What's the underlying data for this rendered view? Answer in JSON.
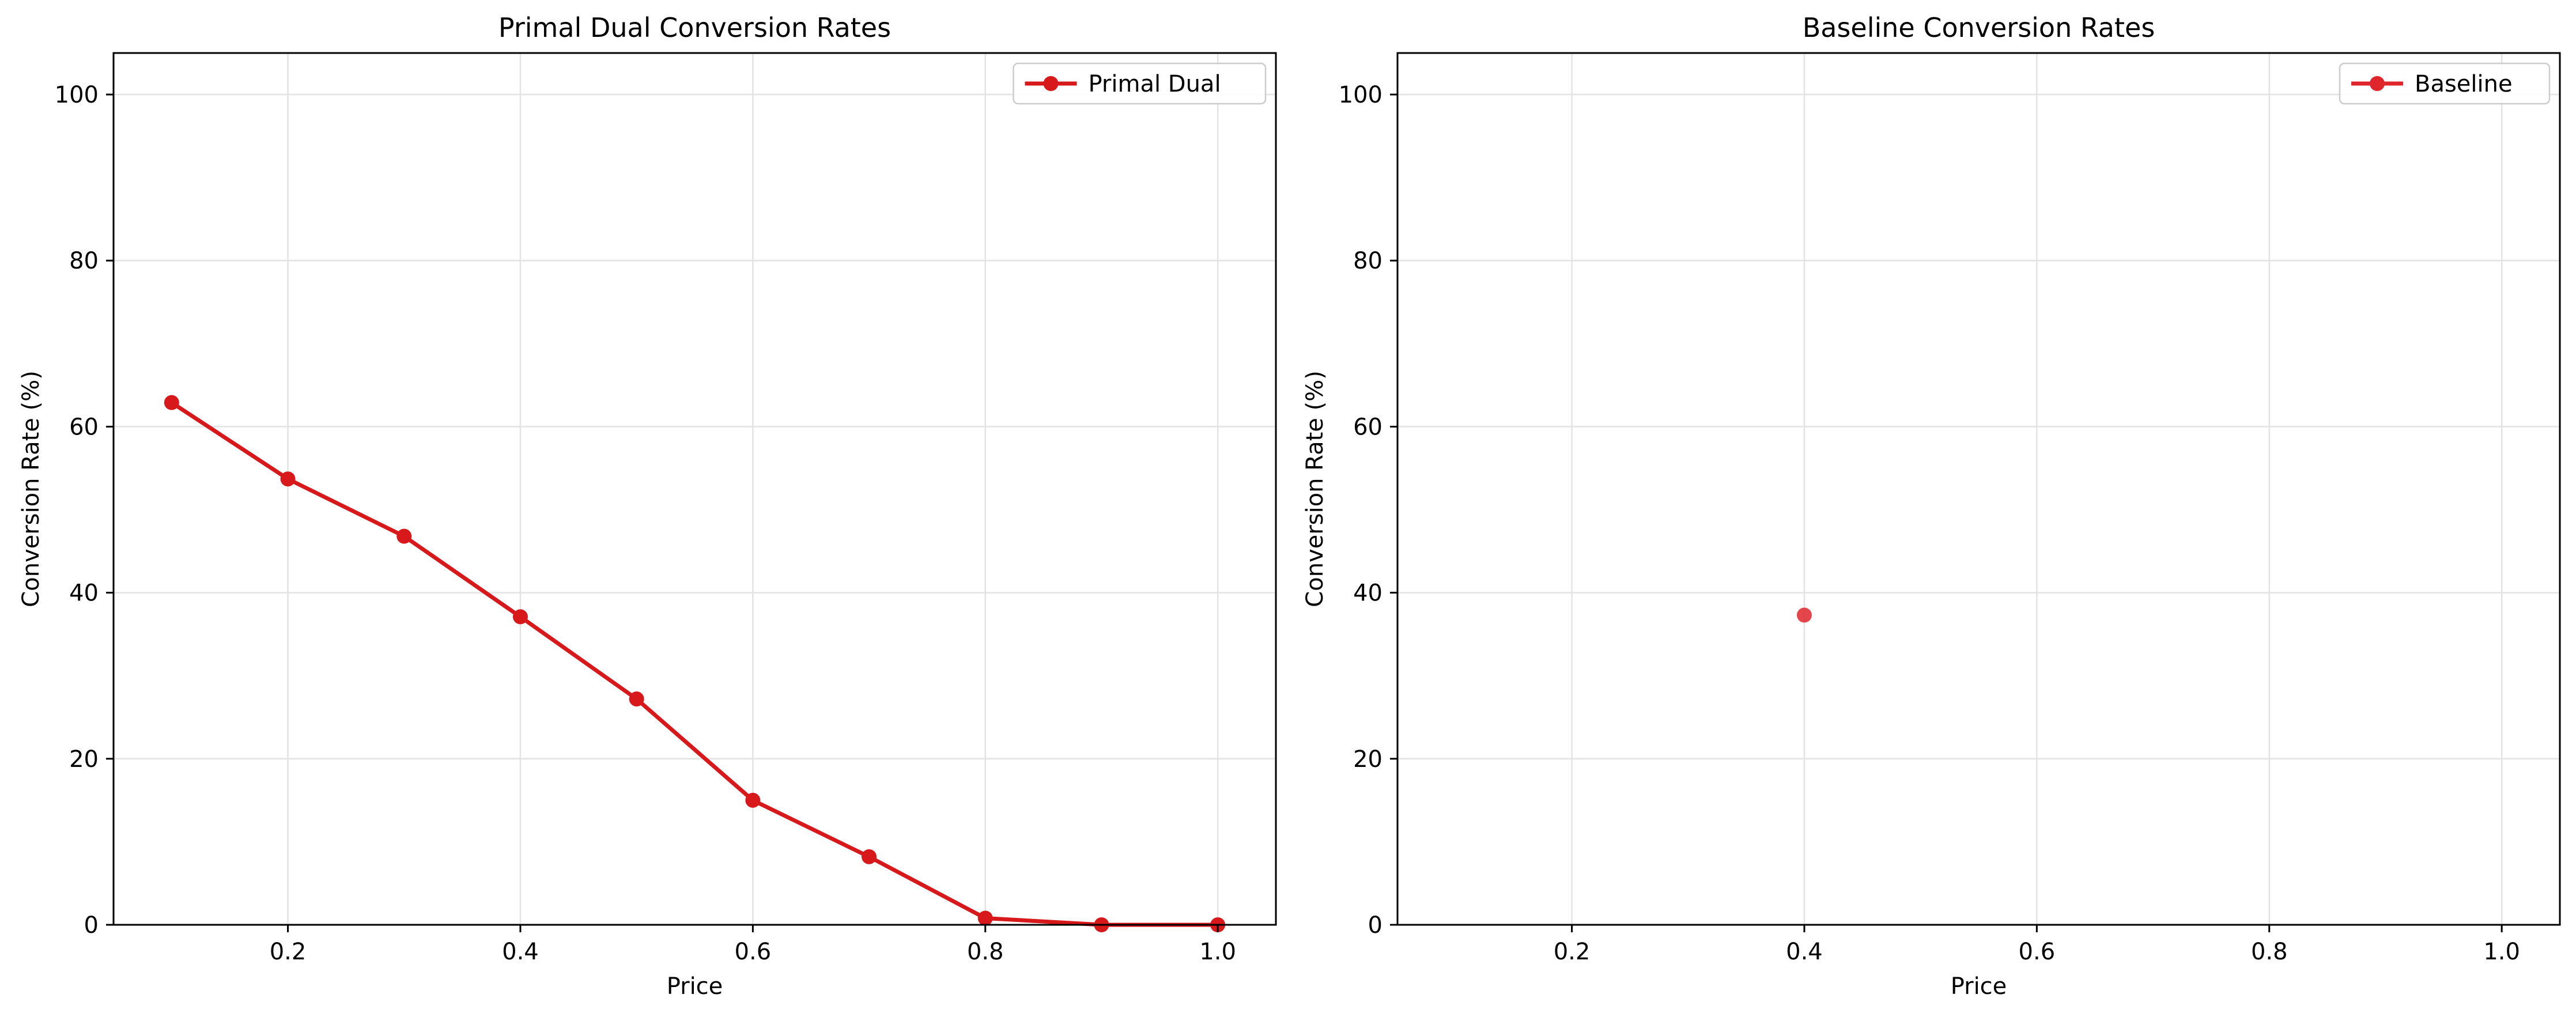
{
  "chart_data": [
    {
      "type": "line",
      "title": "Primal Dual Conversion Rates",
      "xlabel": "Price",
      "ylabel": "Conversion Rate (%)",
      "xlim": [
        0.05,
        1.05
      ],
      "ylim": [
        0,
        105
      ],
      "xticks": [
        0.2,
        0.4,
        0.6,
        0.8,
        1.0
      ],
      "xtick_labels": [
        "0.2",
        "0.4",
        "0.6",
        "0.8",
        "1.0"
      ],
      "yticks": [
        0,
        20,
        40,
        60,
        80,
        100
      ],
      "ytick_labels": [
        "0",
        "20",
        "40",
        "60",
        "80",
        "100"
      ],
      "grid": true,
      "legend_position": "top-right",
      "series": [
        {
          "name": "Primal Dual",
          "color": "#d7191c",
          "x": [
            0.1,
            0.2,
            0.3,
            0.4,
            0.5,
            0.6,
            0.7,
            0.8,
            0.9,
            1.0
          ],
          "values": [
            62.9,
            53.7,
            46.8,
            37.1,
            27.2,
            15.0,
            8.2,
            0.8,
            0.0,
            0.0
          ]
        }
      ]
    },
    {
      "type": "scatter",
      "title": "Baseline Conversion Rates",
      "xlabel": "Price",
      "ylabel": "Conversion Rate (%)",
      "xlim": [
        0.05,
        1.05
      ],
      "ylim": [
        0,
        105
      ],
      "xticks": [
        0.2,
        0.4,
        0.6,
        0.8,
        1.0
      ],
      "xtick_labels": [
        "0.2",
        "0.4",
        "0.6",
        "0.8",
        "1.0"
      ],
      "yticks": [
        0,
        20,
        40,
        60,
        80,
        100
      ],
      "ytick_labels": [
        "0",
        "20",
        "40",
        "60",
        "80",
        "100"
      ],
      "grid": true,
      "legend_position": "top-right",
      "series": [
        {
          "name": "Baseline",
          "color": "#e0262d",
          "x": [
            0.4
          ],
          "values": [
            37.3
          ]
        }
      ]
    }
  ]
}
